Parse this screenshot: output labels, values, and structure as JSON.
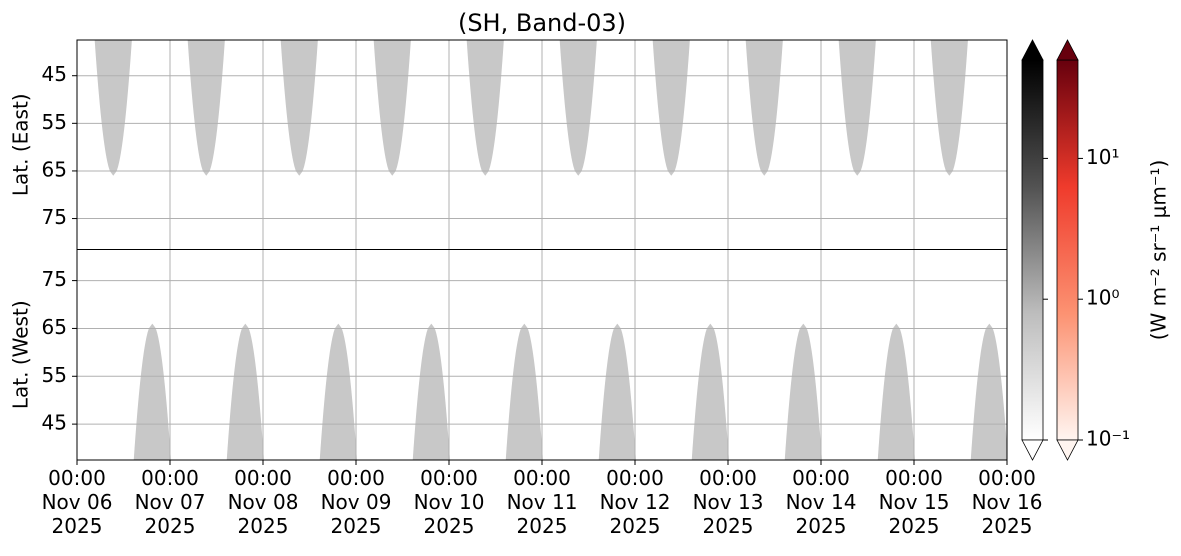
{
  "chart_data": {
    "type": "heatmap",
    "title": "(SH, Band-03)",
    "xlim": [
      0,
      10
    ],
    "xticks": [
      {
        "value": 0,
        "label": "00:00\nNov 06\n2025"
      },
      {
        "value": 1,
        "label": "00:00\nNov 07\n2025"
      },
      {
        "value": 2,
        "label": "00:00\nNov 08\n2025"
      },
      {
        "value": 3,
        "label": "00:00\nNov 09\n2025"
      },
      {
        "value": 4,
        "label": "00:00\nNov 10\n2025"
      },
      {
        "value": 5,
        "label": "00:00\nNov 11\n2025"
      },
      {
        "value": 6,
        "label": "00:00\nNov 12\n2025"
      },
      {
        "value": 7,
        "label": "00:00\nNov 13\n2025"
      },
      {
        "value": 8,
        "label": "00:00\nNov 14\n2025"
      },
      {
        "value": 9,
        "label": "00:00\nNov 15\n2025"
      },
      {
        "value": 10,
        "label": "00:00\nNov 16\n2025"
      }
    ],
    "grid": true,
    "panels": [
      {
        "ylabel": "Lat. (East)",
        "ylim": [
          37.5,
          81.5
        ],
        "inverted": true,
        "yticks": [
          45,
          55,
          65,
          75
        ],
        "color": "#c8c8c8",
        "swath_width": 0.4,
        "x": [
          0.39,
          1.39,
          2.39,
          3.39,
          4.39,
          5.39,
          6.39,
          7.39,
          8.39,
          9.38
        ],
        "values": [
          66,
          66,
          66,
          66,
          66,
          66,
          66,
          66,
          66,
          66
        ]
      },
      {
        "ylabel": "Lat. (West)",
        "ylim": [
          37.5,
          81.5
        ],
        "inverted": false,
        "yticks": [
          45,
          55,
          65,
          75
        ],
        "color": "#c8c8c8",
        "swath_width": 0.4,
        "x": [
          0.81,
          1.81,
          2.81,
          3.81,
          4.81,
          5.81,
          6.81,
          7.81,
          8.81,
          9.81
        ],
        "values": [
          66,
          66,
          66,
          66,
          66,
          66,
          66,
          66,
          66,
          66
        ]
      }
    ],
    "colorbar": {
      "label": "(W m⁻² sr⁻¹ μm⁻¹)",
      "clim": [
        0.1,
        50
      ],
      "log": true,
      "ticks": [
        {
          "value": 0.1,
          "label": "10⁻¹"
        },
        {
          "value": 1,
          "label": "10⁰"
        },
        {
          "value": 10,
          "label": "10¹"
        }
      ],
      "colormaps": [
        [
          "#ffffff",
          "#bdbdbd",
          "#525252",
          "#000000"
        ],
        [
          "#fff5f0",
          "#fc9272",
          "#ef3b2c",
          "#67000d"
        ]
      ]
    }
  }
}
